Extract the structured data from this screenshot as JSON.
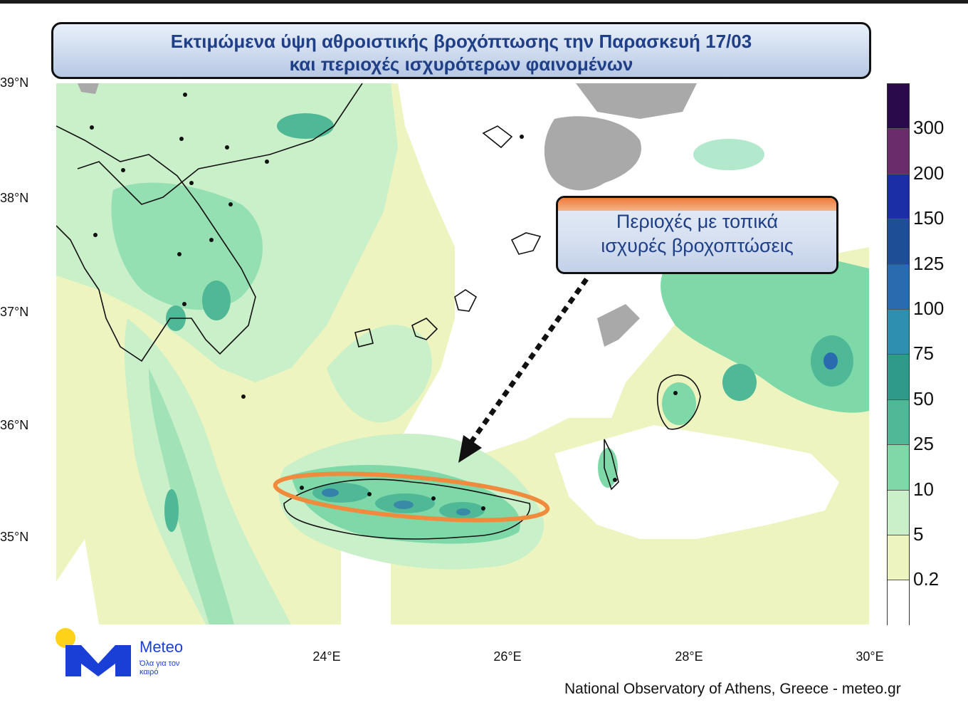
{
  "title": {
    "line1": "Εκτιμώμενα ύψη αθροιστικής βροχόπτωσης την Παρασκευή 17/03",
    "line2": "και περιοχές ισχυρότερων φαινομένων"
  },
  "callout": {
    "line1": "Περιοχές με τοπικά",
    "line2": "ισχυρές βροχοπτώσεις"
  },
  "axes": {
    "lat_labels": [
      "39°N",
      "38°N",
      "37°N",
      "36°N",
      "35°N"
    ],
    "lon_labels": [
      "24°E",
      "26°E",
      "28°E",
      "30°E"
    ]
  },
  "legend": {
    "labels": [
      "300",
      "200",
      "150",
      "125",
      "100",
      "75",
      "50",
      "25",
      "10",
      "5",
      "0.2"
    ],
    "colors": [
      "#2a0a4a",
      "#6b2c6b",
      "#1c2ea6",
      "#1d4e96",
      "#2a6bb0",
      "#2f8fb0",
      "#2f9a8a",
      "#4fb896",
      "#7fd8a8",
      "#c9f0c8",
      "#eef4bf",
      "#ffffff"
    ]
  },
  "map": {
    "colors": {
      "land_base": "#eef4bf",
      "light_green": "#c9f0c8",
      "green": "#7fd8a8",
      "teal": "#4fb896",
      "blue": "#2a6bb0",
      "grey_land": "#a9a9a9",
      "highlight_ellipse": "#f08a3c"
    }
  },
  "logo": {
    "brand": "Meteo",
    "tagline": "Όλα για τον καιρό"
  },
  "credit": "National Observatory of Athens, Greece - meteo.gr"
}
